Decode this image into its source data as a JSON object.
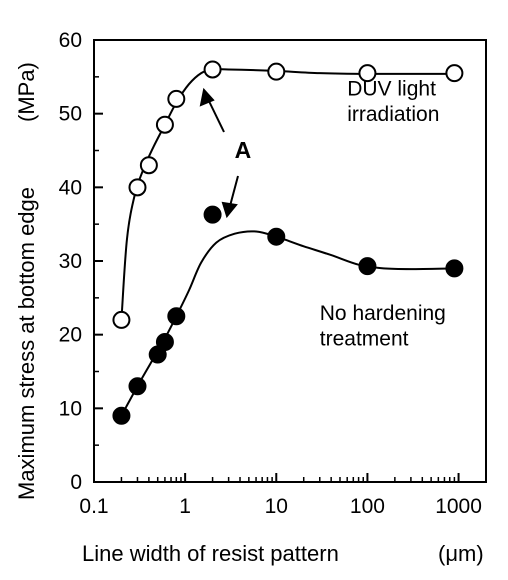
{
  "chart_data": {
    "type": "scatter",
    "xscale": "log",
    "xlim": [
      0.1,
      2000
    ],
    "ylim": [
      0,
      60
    ],
    "xticks": [
      {
        "value": 0.1,
        "label": "0.1"
      },
      {
        "value": 1,
        "label": "1"
      },
      {
        "value": 10,
        "label": "10"
      },
      {
        "value": 100,
        "label": "100"
      },
      {
        "value": 1000,
        "label": "1000"
      }
    ],
    "yticks": [
      0,
      10,
      20,
      30,
      40,
      50,
      60
    ],
    "xlabel": "Line width of resist pattern",
    "xunit": "(μm)",
    "ylabel": "Maximum stress at bottom edge",
    "yunit": "(MPa)",
    "grid": false,
    "series": [
      {
        "marker": "open-circle",
        "points": [
          {
            "x": 0.2,
            "y": 22
          },
          {
            "x": 0.3,
            "y": 40
          },
          {
            "x": 0.4,
            "y": 43
          },
          {
            "x": 0.6,
            "y": 48.5
          },
          {
            "x": 0.8,
            "y": 52
          },
          {
            "x": 2,
            "y": 56
          },
          {
            "x": 10,
            "y": 55.7
          },
          {
            "x": 100,
            "y": 55.5
          },
          {
            "x": 900,
            "y": 55.5
          }
        ],
        "curve": [
          [
            0.2,
            22
          ],
          [
            0.23,
            33
          ],
          [
            0.28,
            39
          ],
          [
            0.35,
            42.5
          ],
          [
            0.45,
            45.5
          ],
          [
            0.6,
            48.5
          ],
          [
            0.8,
            51.5
          ],
          [
            1.1,
            54
          ],
          [
            1.5,
            55.5
          ],
          [
            2,
            56
          ],
          [
            3,
            56
          ],
          [
            10,
            55.8
          ],
          [
            30,
            55.5
          ],
          [
            100,
            55.4
          ],
          [
            300,
            55.4
          ],
          [
            900,
            55.4
          ]
        ]
      },
      {
        "marker": "filled-circle",
        "points": [
          {
            "x": 0.2,
            "y": 9
          },
          {
            "x": 0.3,
            "y": 13
          },
          {
            "x": 0.5,
            "y": 17.3
          },
          {
            "x": 0.6,
            "y": 19
          },
          {
            "x": 0.8,
            "y": 22.5
          },
          {
            "x": 2,
            "y": 36.3
          },
          {
            "x": 10,
            "y": 33.3
          },
          {
            "x": 100,
            "y": 29.3
          },
          {
            "x": 900,
            "y": 29
          }
        ],
        "curve": [
          [
            0.2,
            9
          ],
          [
            0.3,
            13
          ],
          [
            0.45,
            16.8
          ],
          [
            0.6,
            19.5
          ],
          [
            0.8,
            22.5
          ],
          [
            1.1,
            26
          ],
          [
            1.5,
            29.8
          ],
          [
            2.2,
            32.5
          ],
          [
            3.5,
            33.7
          ],
          [
            6,
            34
          ],
          [
            10,
            33.3
          ],
          [
            20,
            32
          ],
          [
            40,
            30.8
          ],
          [
            80,
            29.5
          ],
          [
            150,
            29
          ],
          [
            300,
            28.9
          ],
          [
            900,
            29
          ]
        ]
      }
    ],
    "annotations": [
      {
        "text": "DUV light",
        "x": 60,
        "y": 52.5
      },
      {
        "text": "irradiation",
        "x": 60,
        "y": 49
      },
      {
        "text": "No hardening",
        "x": 30,
        "y": 22
      },
      {
        "text": "treatment",
        "x": 30,
        "y": 18.5
      },
      {
        "text": "A",
        "x": 4.3,
        "y": 44
      }
    ]
  }
}
